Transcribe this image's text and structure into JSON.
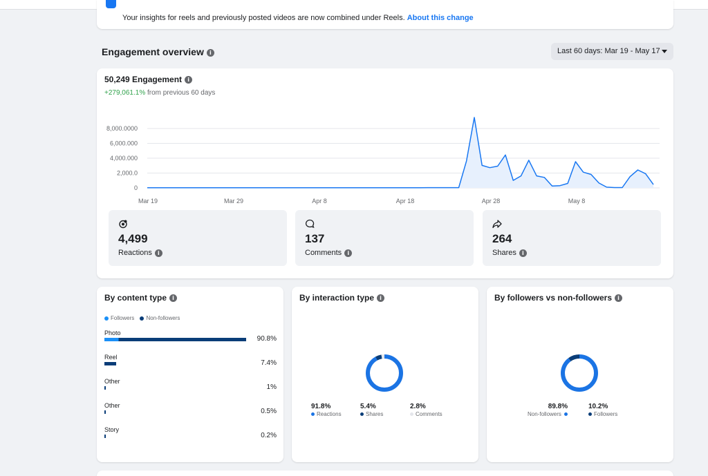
{
  "notice": {
    "text": "Your insights for reels and previously posted videos are now combined under Reels.",
    "link": "About this change"
  },
  "overview": {
    "title": "Engagement overview",
    "date_range": "Last 60 days: Mar 19 - May 17"
  },
  "engagement": {
    "title": "50,249 Engagement",
    "change": "+279,061.1%",
    "change_suffix": "from previous 60 days"
  },
  "chart_data": {
    "type": "area",
    "y_ticks": [
      "8,000.0000",
      "6,000.000",
      "4,000.000",
      "2,000.0",
      "0"
    ],
    "y_tick_values": [
      8000,
      6000,
      4000,
      2000,
      0
    ],
    "x_ticks": [
      "Mar 19",
      "Mar 29",
      "Apr 8",
      "Apr 18",
      "Apr 28",
      "May 8"
    ],
    "ylim": [
      0,
      9500
    ],
    "color": "#1877f2",
    "fill": "#e7f0fd",
    "values": [
      20,
      20,
      20,
      20,
      20,
      20,
      20,
      20,
      20,
      20,
      20,
      25,
      20,
      20,
      20,
      20,
      20,
      20,
      20,
      20,
      20,
      20,
      20,
      20,
      20,
      20,
      20,
      25,
      30,
      30,
      30,
      30,
      30,
      30,
      30,
      30,
      40,
      40,
      40,
      40,
      40,
      3600,
      9400,
      3000,
      2700,
      2900,
      4400,
      1000,
      1600,
      3700,
      1600,
      1400,
      250,
      300,
      600,
      3500,
      2100,
      1800,
      650,
      100,
      50,
      50,
      1500,
      2400,
      1900,
      450
    ]
  },
  "metrics": [
    {
      "value": "4,499",
      "label": "Reactions"
    },
    {
      "value": "137",
      "label": "Comments"
    },
    {
      "value": "264",
      "label": "Shares"
    }
  ],
  "content_type": {
    "title": "By content type",
    "legend": [
      "Followers",
      "Non-followers"
    ],
    "colors": {
      "followers": "#1b90f7",
      "non_followers": "#0a3d78"
    },
    "rows": [
      {
        "label": "Photo",
        "pct": "90.8%",
        "value": 90.8,
        "followers_share": 0.1
      },
      {
        "label": "Reel",
        "pct": "7.4%",
        "value": 7.4,
        "followers_share": 0.0
      },
      {
        "label": "Other",
        "pct": "1%",
        "value": 1.0,
        "followers_share": 0.0
      },
      {
        "label": "Other",
        "pct": "0.5%",
        "value": 0.5,
        "followers_share": 0.0
      },
      {
        "label": "Story",
        "pct": "0.2%",
        "value": 0.2,
        "followers_share": 0.0
      }
    ]
  },
  "interaction_type": {
    "title": "By interaction type",
    "slices": [
      {
        "value": 91.8,
        "pct": "91.8%",
        "label": "Reactions",
        "color": "#1b74e4"
      },
      {
        "value": 5.4,
        "pct": "5.4%",
        "label": "Shares",
        "color": "#0a3d78"
      },
      {
        "value": 2.8,
        "pct": "2.8%",
        "label": "Comments",
        "color": "#e4e6eb"
      }
    ]
  },
  "followers": {
    "title": "By followers vs non-followers",
    "slices": [
      {
        "value": 89.8,
        "pct": "89.8%",
        "label": "Non-followers",
        "color": "#1b74e4"
      },
      {
        "value": 10.2,
        "pct": "10.2%",
        "label": "Followers",
        "color": "#0a3d78"
      }
    ]
  }
}
